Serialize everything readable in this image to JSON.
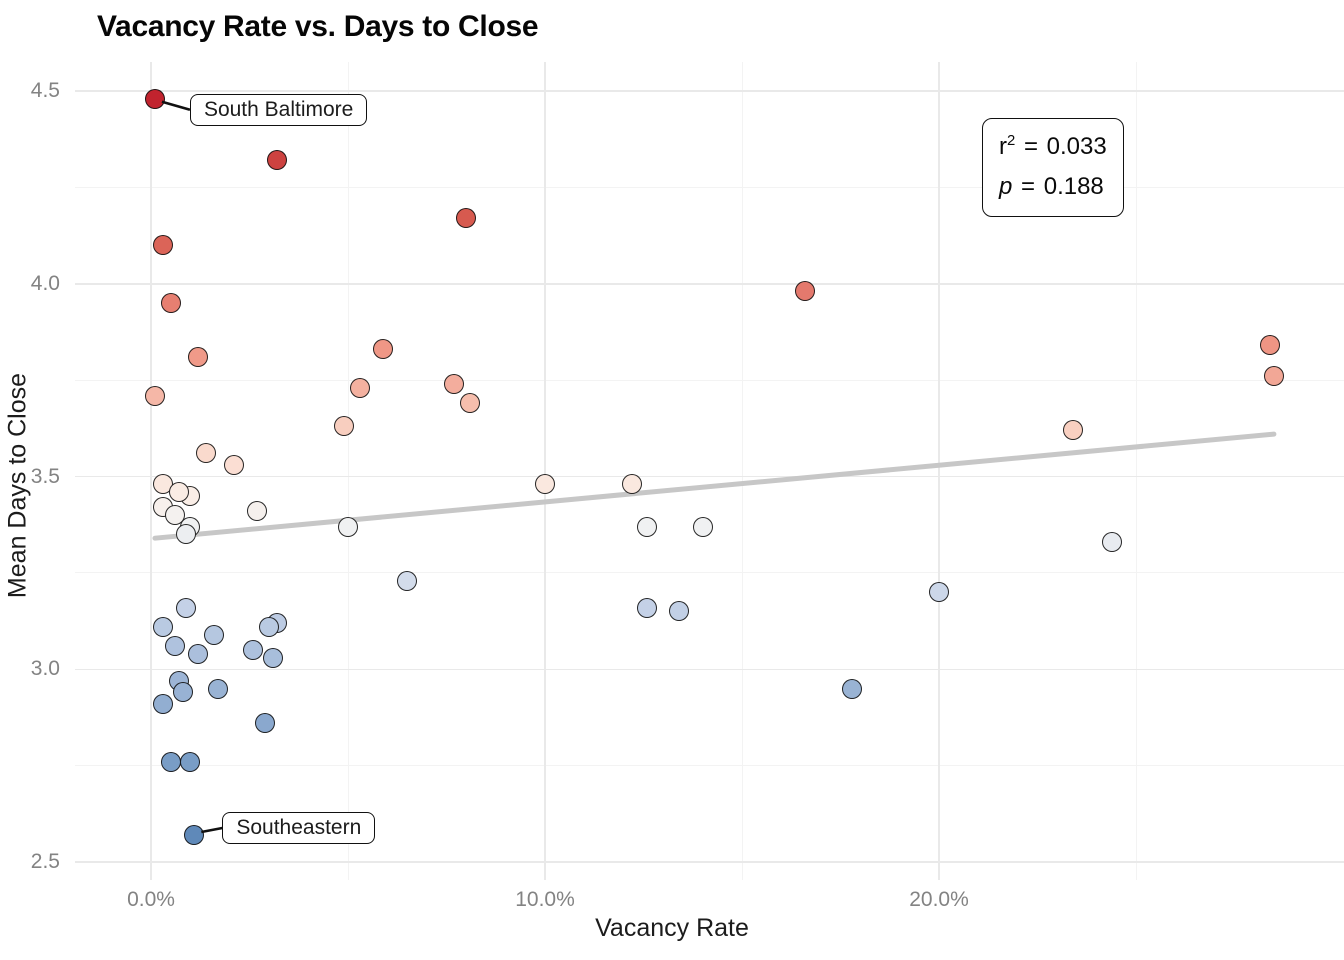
{
  "title": "Vacancy Rate vs. Days to Close",
  "chart_data": {
    "type": "scatter",
    "title": "Vacancy Rate vs. Days to Close",
    "xlabel": "Vacancy Rate",
    "ylabel": "Mean Days to Close",
    "xlim_pct": [
      -1.9,
      30.3
    ],
    "ylim": [
      2.45,
      4.58
    ],
    "grid": "major+minor",
    "legend": "none",
    "x_ticks": [
      {
        "value": 0,
        "label": "0.0%"
      },
      {
        "value": 10,
        "label": "10.0%"
      },
      {
        "value": 20,
        "label": "20.0%"
      }
    ],
    "x_minor_ticks": [
      5,
      15,
      25
    ],
    "y_ticks": [
      {
        "value": 2.5,
        "label": "2.5"
      },
      {
        "value": 3.0,
        "label": "3.0"
      },
      {
        "value": 3.5,
        "label": "3.5"
      },
      {
        "value": 4.0,
        "label": "4.0"
      },
      {
        "value": 4.5,
        "label": "4.5"
      }
    ],
    "y_minor_ticks": [
      2.75,
      3.25,
      3.75,
      4.25
    ],
    "color_encoding": "y (Mean Days to Close), diverging blue-white-red",
    "color_scale": [
      [
        2.55,
        "#5c87b8"
      ],
      [
        2.8,
        "#7fa1c9"
      ],
      [
        3.0,
        "#a2b9d8"
      ],
      [
        3.15,
        "#c2d0e6"
      ],
      [
        3.28,
        "#dde3ee"
      ],
      [
        3.38,
        "#f2f2f2"
      ],
      [
        3.45,
        "#faeee7"
      ],
      [
        3.52,
        "#fbe0d5"
      ],
      [
        3.65,
        "#f8cbbb"
      ],
      [
        3.78,
        "#f1a08f"
      ],
      [
        3.9,
        "#ec8a79"
      ],
      [
        4.0,
        "#e2756a"
      ],
      [
        4.12,
        "#da6154"
      ],
      [
        4.22,
        "#d4534a"
      ],
      [
        4.35,
        "#cb3d3d"
      ],
      [
        4.5,
        "#bf1f2c"
      ]
    ],
    "points": [
      {
        "x": 0.1,
        "y": 4.48,
        "label": "South Baltimore"
      },
      {
        "x": 3.2,
        "y": 4.32
      },
      {
        "x": 8.0,
        "y": 4.17
      },
      {
        "x": 0.3,
        "y": 4.1
      },
      {
        "x": 16.6,
        "y": 3.98
      },
      {
        "x": 0.5,
        "y": 3.95
      },
      {
        "x": 28.4,
        "y": 3.84
      },
      {
        "x": 5.9,
        "y": 3.83
      },
      {
        "x": 1.2,
        "y": 3.81
      },
      {
        "x": 28.5,
        "y": 3.76
      },
      {
        "x": 7.7,
        "y": 3.74
      },
      {
        "x": 5.3,
        "y": 3.73
      },
      {
        "x": 0.1,
        "y": 3.71
      },
      {
        "x": 8.1,
        "y": 3.69
      },
      {
        "x": 4.9,
        "y": 3.63
      },
      {
        "x": 23.4,
        "y": 3.62
      },
      {
        "x": 1.4,
        "y": 3.56
      },
      {
        "x": 2.1,
        "y": 3.53
      },
      {
        "x": 0.3,
        "y": 3.48
      },
      {
        "x": 10.0,
        "y": 3.48
      },
      {
        "x": 12.2,
        "y": 3.48
      },
      {
        "x": 1.0,
        "y": 3.45
      },
      {
        "x": 0.7,
        "y": 3.46
      },
      {
        "x": 0.3,
        "y": 3.42
      },
      {
        "x": 0.6,
        "y": 3.4
      },
      {
        "x": 2.7,
        "y": 3.41
      },
      {
        "x": 1.0,
        "y": 3.37
      },
      {
        "x": 0.9,
        "y": 3.35
      },
      {
        "x": 5.0,
        "y": 3.37
      },
      {
        "x": 12.6,
        "y": 3.37
      },
      {
        "x": 14.0,
        "y": 3.37
      },
      {
        "x": 24.4,
        "y": 3.33
      },
      {
        "x": 6.5,
        "y": 3.23
      },
      {
        "x": 20.0,
        "y": 3.2
      },
      {
        "x": 0.9,
        "y": 3.16
      },
      {
        "x": 12.6,
        "y": 3.16
      },
      {
        "x": 13.4,
        "y": 3.15
      },
      {
        "x": 0.3,
        "y": 3.11
      },
      {
        "x": 3.2,
        "y": 3.12
      },
      {
        "x": 3.0,
        "y": 3.11
      },
      {
        "x": 1.6,
        "y": 3.09
      },
      {
        "x": 0.6,
        "y": 3.06
      },
      {
        "x": 2.6,
        "y": 3.05
      },
      {
        "x": 1.2,
        "y": 3.04
      },
      {
        "x": 3.1,
        "y": 3.03
      },
      {
        "x": 0.7,
        "y": 2.97
      },
      {
        "x": 1.7,
        "y": 2.95
      },
      {
        "x": 17.8,
        "y": 2.95
      },
      {
        "x": 0.8,
        "y": 2.94
      },
      {
        "x": 0.3,
        "y": 2.91
      },
      {
        "x": 2.9,
        "y": 2.86
      },
      {
        "x": 0.5,
        "y": 2.76
      },
      {
        "x": 1.0,
        "y": 2.76
      },
      {
        "x": 1.1,
        "y": 2.57,
        "label": "Southeastern"
      }
    ],
    "trend_line": {
      "x1": 0.1,
      "y1": 3.34,
      "x2": 28.5,
      "y2": 3.61,
      "color": "#c7c7c7"
    },
    "stats_box": {
      "r2_var": "r",
      "r2_exp": "2",
      "equals": "=",
      "r2_value": "0.033",
      "p_var": "p",
      "p_value": "0.188"
    },
    "annotations": [
      {
        "text": "South Baltimore",
        "point_index": 0
      },
      {
        "text": "Southeastern",
        "point_index": 53
      }
    ]
  }
}
